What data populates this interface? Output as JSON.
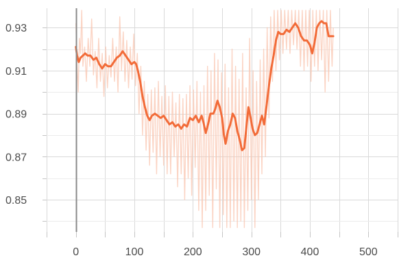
{
  "chart_data": {
    "type": "line",
    "title": "",
    "xlabel": "",
    "ylabel": "",
    "xlim": [
      -50,
      550
    ],
    "ylim": [
      0.835,
      0.939
    ],
    "x_ticks": [
      0,
      100,
      200,
      300,
      400,
      500
    ],
    "y_ticks": [
      0.85,
      0.87,
      0.89,
      0.91,
      0.93
    ],
    "x_tick_labels": [
      "0",
      "100",
      "200",
      "300",
      "400",
      "500"
    ],
    "y_tick_labels": [
      "0.85",
      "0.87",
      "0.89",
      "0.91",
      "0.93"
    ],
    "grid": true,
    "legend": "none",
    "colors": {
      "smoothed": "#f26b38",
      "raw": "#f9c6b0",
      "y_axis_line": "#8a8a8a"
    },
    "series": [
      {
        "role": "smoothed",
        "points": [
          [
            0,
            0.921
          ],
          [
            2,
            0.917
          ],
          [
            5,
            0.914
          ],
          [
            8,
            0.916
          ],
          [
            12,
            0.917
          ],
          [
            16,
            0.918
          ],
          [
            20,
            0.917
          ],
          [
            25,
            0.917
          ],
          [
            30,
            0.915
          ],
          [
            35,
            0.916
          ],
          [
            40,
            0.913
          ],
          [
            45,
            0.911
          ],
          [
            50,
            0.913
          ],
          [
            55,
            0.912
          ],
          [
            60,
            0.912
          ],
          [
            65,
            0.914
          ],
          [
            70,
            0.916
          ],
          [
            75,
            0.917
          ],
          [
            80,
            0.919
          ],
          [
            85,
            0.917
          ],
          [
            90,
            0.915
          ],
          [
            95,
            0.913
          ],
          [
            100,
            0.914
          ],
          [
            103,
            0.913
          ],
          [
            106,
            0.91
          ],
          [
            110,
            0.905
          ],
          [
            114,
            0.898
          ],
          [
            118,
            0.893
          ],
          [
            122,
            0.889
          ],
          [
            126,
            0.887
          ],
          [
            130,
            0.889
          ],
          [
            135,
            0.89
          ],
          [
            140,
            0.889
          ],
          [
            145,
            0.888
          ],
          [
            150,
            0.889
          ],
          [
            155,
            0.887
          ],
          [
            160,
            0.885
          ],
          [
            165,
            0.886
          ],
          [
            170,
            0.884
          ],
          [
            175,
            0.885
          ],
          [
            180,
            0.883
          ],
          [
            185,
            0.885
          ],
          [
            190,
            0.884
          ],
          [
            195,
            0.888
          ],
          [
            200,
            0.887
          ],
          [
            205,
            0.889
          ],
          [
            210,
            0.886
          ],
          [
            215,
            0.889
          ],
          [
            218,
            0.886
          ],
          [
            222,
            0.881
          ],
          [
            226,
            0.885
          ],
          [
            230,
            0.89
          ],
          [
            235,
            0.89
          ],
          [
            238,
            0.892
          ],
          [
            242,
            0.896
          ],
          [
            246,
            0.893
          ],
          [
            250,
            0.888
          ],
          [
            253,
            0.88
          ],
          [
            256,
            0.876
          ],
          [
            260,
            0.882
          ],
          [
            264,
            0.885
          ],
          [
            268,
            0.89
          ],
          [
            272,
            0.888
          ],
          [
            276,
            0.882
          ],
          [
            280,
            0.878
          ],
          [
            284,
            0.873
          ],
          [
            288,
            0.874
          ],
          [
            292,
            0.885
          ],
          [
            295,
            0.893
          ],
          [
            298,
            0.889
          ],
          [
            302,
            0.883
          ],
          [
            306,
            0.88
          ],
          [
            310,
            0.881
          ],
          [
            314,
            0.885
          ],
          [
            318,
            0.889
          ],
          [
            322,
            0.885
          ],
          [
            326,
            0.894
          ],
          [
            330,
            0.903
          ],
          [
            334,
            0.911
          ],
          [
            338,
            0.917
          ],
          [
            342,
            0.924
          ],
          [
            346,
            0.928
          ],
          [
            350,
            0.927
          ],
          [
            355,
            0.927
          ],
          [
            360,
            0.929
          ],
          [
            365,
            0.928
          ],
          [
            370,
            0.93
          ],
          [
            375,
            0.932
          ],
          [
            380,
            0.93
          ],
          [
            385,
            0.926
          ],
          [
            390,
            0.924
          ],
          [
            395,
            0.924
          ],
          [
            400,
            0.922
          ],
          [
            404,
            0.918
          ],
          [
            408,
            0.923
          ],
          [
            412,
            0.93
          ],
          [
            416,
            0.932
          ],
          [
            420,
            0.933
          ],
          [
            424,
            0.932
          ],
          [
            428,
            0.932
          ],
          [
            432,
            0.926
          ],
          [
            436,
            0.926
          ],
          [
            440,
            0.926
          ]
        ]
      },
      {
        "role": "raw",
        "points": [
          [
            0,
            0.932
          ],
          [
            2,
            0.913
          ],
          [
            4,
            0.9
          ],
          [
            6,
            0.925
          ],
          [
            8,
            0.918
          ],
          [
            10,
            0.938
          ],
          [
            12,
            0.912
          ],
          [
            15,
            0.921
          ],
          [
            18,
            0.905
          ],
          [
            21,
            0.925
          ],
          [
            24,
            0.912
          ],
          [
            27,
            0.934
          ],
          [
            30,
            0.908
          ],
          [
            33,
            0.919
          ],
          [
            36,
            0.902
          ],
          [
            39,
            0.925
          ],
          [
            42,
            0.905
          ],
          [
            45,
            0.918
          ],
          [
            48,
            0.898
          ],
          [
            51,
            0.921
          ],
          [
            54,
            0.902
          ],
          [
            57,
            0.917
          ],
          [
            60,
            0.907
          ],
          [
            63,
            0.925
          ],
          [
            66,
            0.905
          ],
          [
            69,
            0.921
          ],
          [
            72,
            0.9
          ],
          [
            75,
            0.935
          ],
          [
            78,
            0.91
          ],
          [
            81,
            0.928
          ],
          [
            84,
            0.905
          ],
          [
            87,
            0.924
          ],
          [
            90,
            0.902
          ],
          [
            93,
            0.921
          ],
          [
            96,
            0.906
          ],
          [
            99,
            0.927
          ],
          [
            102,
            0.903
          ],
          [
            105,
            0.918
          ],
          [
            108,
            0.89
          ],
          [
            111,
            0.912
          ],
          [
            114,
            0.88
          ],
          [
            117,
            0.905
          ],
          [
            120,
            0.873
          ],
          [
            123,
            0.899
          ],
          [
            126,
            0.866
          ],
          [
            129,
            0.901
          ],
          [
            132,
            0.872
          ],
          [
            135,
            0.902
          ],
          [
            138,
            0.862
          ],
          [
            141,
            0.905
          ],
          [
            144,
            0.87
          ],
          [
            147,
            0.898
          ],
          [
            150,
            0.866
          ],
          [
            153,
            0.903
          ],
          [
            156,
            0.862
          ],
          [
            159,
            0.898
          ],
          [
            162,
            0.862
          ],
          [
            165,
            0.9
          ],
          [
            168,
            0.87
          ],
          [
            171,
            0.895
          ],
          [
            174,
            0.856
          ],
          [
            177,
            0.899
          ],
          [
            180,
            0.862
          ],
          [
            183,
            0.897
          ],
          [
            186,
            0.85
          ],
          [
            189,
            0.899
          ],
          [
            192,
            0.86
          ],
          [
            195,
            0.903
          ],
          [
            198,
            0.852
          ],
          [
            201,
            0.901
          ],
          [
            204,
            0.865
          ],
          [
            207,
            0.905
          ],
          [
            210,
            0.845
          ],
          [
            213,
            0.9
          ],
          [
            216,
            0.837
          ],
          [
            219,
            0.903
          ],
          [
            222,
            0.845
          ],
          [
            225,
            0.912
          ],
          [
            228,
            0.852
          ],
          [
            231,
            0.91
          ],
          [
            234,
            0.837
          ],
          [
            237,
            0.918
          ],
          [
            240,
            0.855
          ],
          [
            243,
            0.915
          ],
          [
            246,
            0.837
          ],
          [
            249,
            0.909
          ],
          [
            252,
            0.843
          ],
          [
            255,
            0.913
          ],
          [
            258,
            0.837
          ],
          [
            261,
            0.902
          ],
          [
            264,
            0.837
          ],
          [
            267,
            0.92
          ],
          [
            270,
            0.84
          ],
          [
            273,
            0.912
          ],
          [
            276,
            0.837
          ],
          [
            279,
            0.906
          ],
          [
            282,
            0.84
          ],
          [
            285,
            0.918
          ],
          [
            288,
            0.837
          ],
          [
            291,
            0.902
          ],
          [
            294,
            0.845
          ],
          [
            297,
            0.925
          ],
          [
            300,
            0.85
          ],
          [
            303,
            0.91
          ],
          [
            306,
            0.837
          ],
          [
            309,
            0.905
          ],
          [
            312,
            0.85
          ],
          [
            315,
            0.915
          ],
          [
            318,
            0.862
          ],
          [
            321,
            0.92
          ],
          [
            324,
            0.87
          ],
          [
            327,
            0.93
          ],
          [
            330,
            0.888
          ],
          [
            333,
            0.935
          ],
          [
            336,
            0.905
          ],
          [
            339,
            0.938
          ],
          [
            342,
            0.91
          ],
          [
            345,
            0.938
          ],
          [
            348,
            0.915
          ],
          [
            351,
            0.938
          ],
          [
            354,
            0.918
          ],
          [
            357,
            0.938
          ],
          [
            360,
            0.92
          ],
          [
            363,
            0.938
          ],
          [
            366,
            0.918
          ],
          [
            369,
            0.938
          ],
          [
            372,
            0.922
          ],
          [
            375,
            0.938
          ],
          [
            378,
            0.92
          ],
          [
            381,
            0.938
          ],
          [
            384,
            0.912
          ],
          [
            387,
            0.938
          ],
          [
            390,
            0.91
          ],
          [
            393,
            0.938
          ],
          [
            396,
            0.912
          ],
          [
            399,
            0.938
          ],
          [
            402,
            0.905
          ],
          [
            405,
            0.938
          ],
          [
            408,
            0.912
          ],
          [
            411,
            0.938
          ],
          [
            414,
            0.91
          ],
          [
            417,
            0.938
          ],
          [
            420,
            0.915
          ],
          [
            423,
            0.938
          ],
          [
            426,
            0.9
          ],
          [
            429,
            0.938
          ],
          [
            432,
            0.905
          ],
          [
            435,
            0.938
          ],
          [
            438,
            0.912
          ],
          [
            440,
            0.93
          ]
        ]
      }
    ]
  }
}
